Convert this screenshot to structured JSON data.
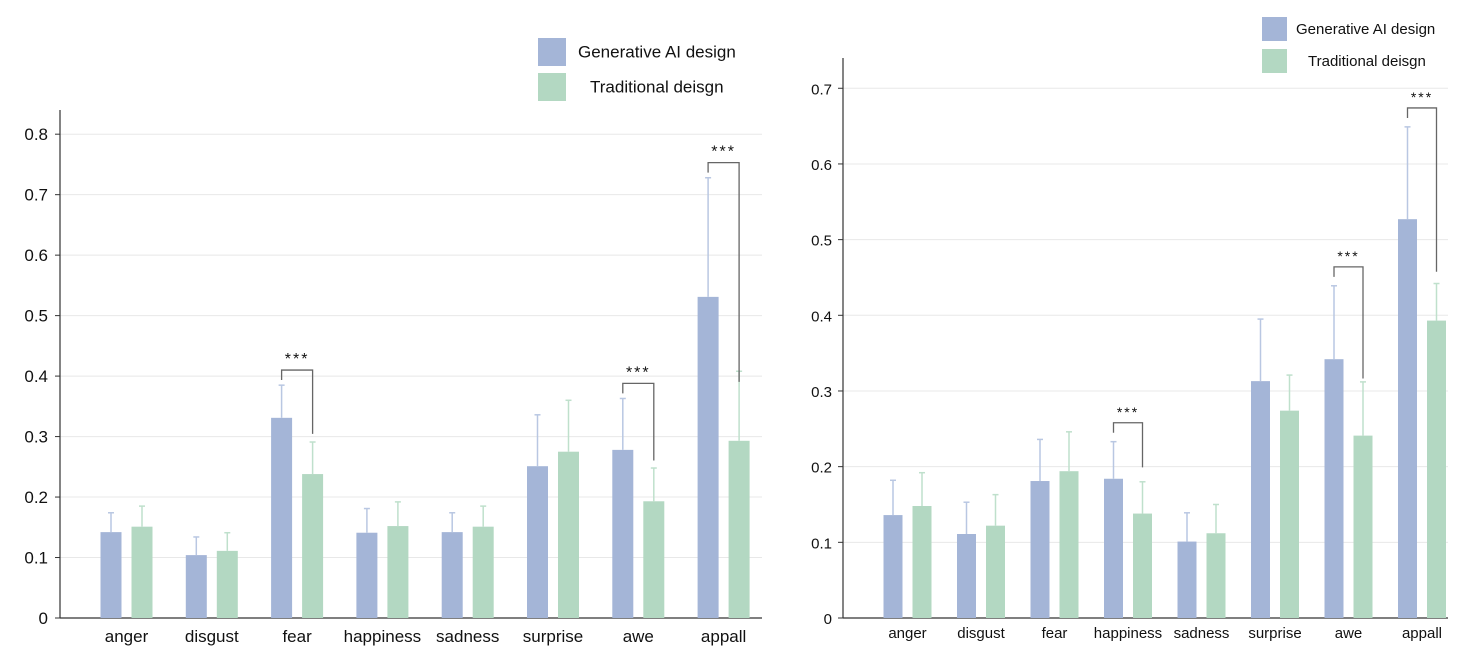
{
  "chart_data": [
    {
      "type": "bar",
      "title": "",
      "xlabel": "",
      "ylabel": "",
      "ylim": [
        0,
        0.84
      ],
      "yticks": [
        0,
        0.1,
        0.2,
        0.3,
        0.4,
        0.5,
        0.6,
        0.7,
        0.8
      ],
      "ytick_labels": [
        "0",
        "0.1",
        "0.2",
        "0.3",
        "0.4",
        "0.5",
        "0.6",
        "0.7",
        "0.8"
      ],
      "grid": true,
      "legend_position": "top-right",
      "categories": [
        "anger",
        "disgust",
        "fear",
        "happiness",
        "sadness",
        "surprise",
        "awe",
        "appall"
      ],
      "series": [
        {
          "name": "Generative AI design",
          "color": "#a4b5d7",
          "values": [
            0.142,
            0.104,
            0.331,
            0.141,
            0.142,
            0.251,
            0.278,
            0.531
          ],
          "error": [
            0.032,
            0.03,
            0.054,
            0.04,
            0.032,
            0.085,
            0.085,
            0.197
          ]
        },
        {
          "name": "Traditional deisgn",
          "color": "#b3d8c2",
          "values": [
            0.151,
            0.111,
            0.238,
            0.152,
            0.151,
            0.275,
            0.193,
            0.293
          ],
          "error": [
            0.034,
            0.03,
            0.053,
            0.04,
            0.034,
            0.085,
            0.055,
            0.115
          ]
        }
      ],
      "significance": [
        {
          "category": "fear",
          "label": "***"
        },
        {
          "category": "awe",
          "label": "***"
        },
        {
          "category": "appall",
          "label": "***"
        }
      ]
    },
    {
      "type": "bar",
      "title": "",
      "xlabel": "",
      "ylabel": "",
      "ylim": [
        0,
        0.74
      ],
      "yticks": [
        0,
        0.1,
        0.2,
        0.3,
        0.4,
        0.5,
        0.6,
        0.7
      ],
      "ytick_labels": [
        "0",
        "0.1",
        "0.2",
        "0.3",
        "0.4",
        "0.5",
        "0.6",
        "0.7"
      ],
      "grid": true,
      "legend_position": "top-right",
      "categories": [
        "anger",
        "disgust",
        "fear",
        "happiness",
        "sadness",
        "surprise",
        "awe",
        "appall"
      ],
      "series": [
        {
          "name": "Generative AI design",
          "color": "#a4b5d7",
          "values": [
            0.136,
            0.111,
            0.181,
            0.184,
            0.101,
            0.313,
            0.342,
            0.527
          ],
          "error": [
            0.046,
            0.042,
            0.055,
            0.049,
            0.038,
            0.082,
            0.097,
            0.122
          ]
        },
        {
          "name": "Traditional deisgn",
          "color": "#b3d8c2",
          "values": [
            0.148,
            0.122,
            0.194,
            0.138,
            0.112,
            0.274,
            0.241,
            0.393
          ],
          "error": [
            0.044,
            0.041,
            0.052,
            0.042,
            0.038,
            0.047,
            0.071,
            0.049
          ]
        }
      ],
      "significance": [
        {
          "category": "happiness",
          "label": "***"
        },
        {
          "category": "awe",
          "label": "***"
        },
        {
          "category": "appall",
          "label": "***"
        }
      ]
    }
  ]
}
